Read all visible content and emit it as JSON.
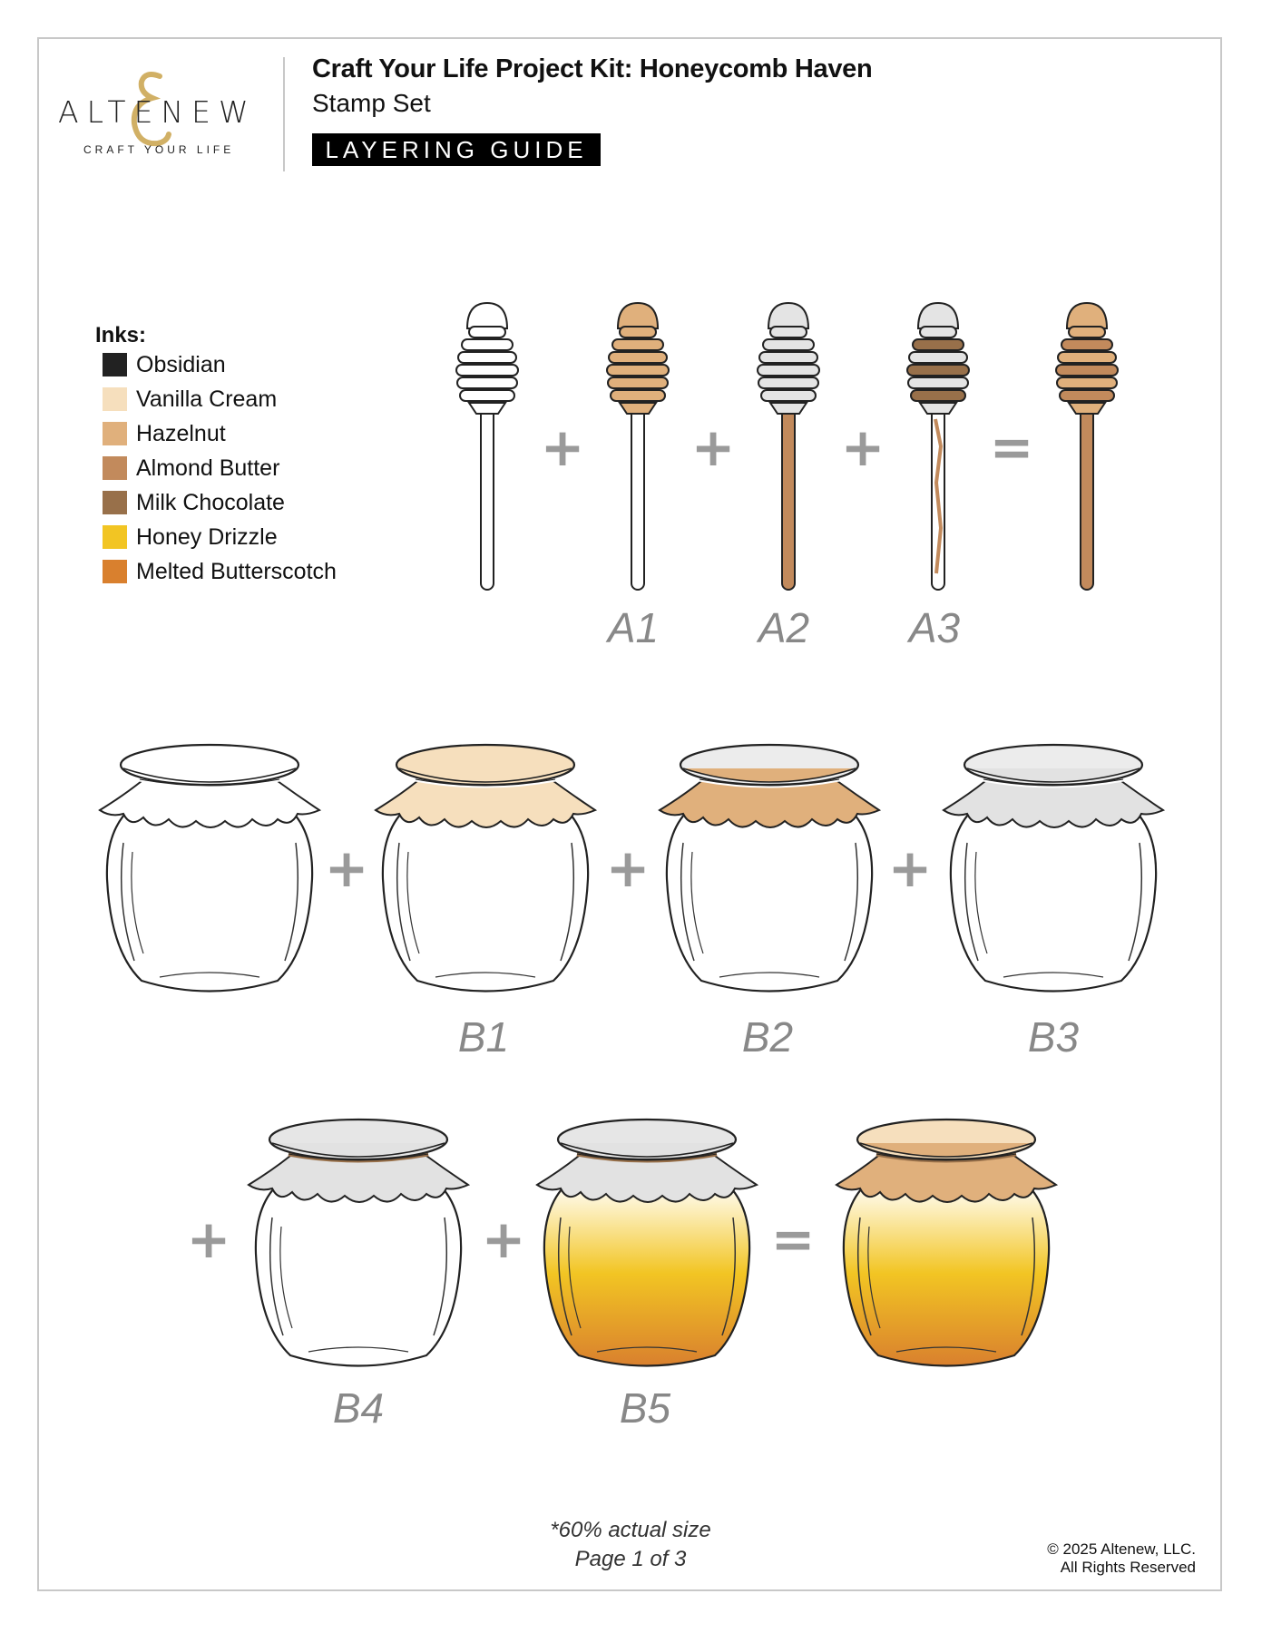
{
  "brand": {
    "logo_text": "ALTENEW",
    "logo_ampersand": "&",
    "tagline": "CRAFT YOUR LIFE"
  },
  "header": {
    "title": "Craft Your Life Project Kit: Honeycomb Haven",
    "subtitle": "Stamp Set",
    "badge": "LAYERING GUIDE"
  },
  "inks": {
    "heading": "Inks:",
    "items": [
      {
        "name": "Obsidian",
        "color": "#222222"
      },
      {
        "name": "Vanilla Cream",
        "color": "#f6dfbd"
      },
      {
        "name": "Hazelnut",
        "color": "#e0b07c"
      },
      {
        "name": "Almond Butter",
        "color": "#c28a5c"
      },
      {
        "name": "Milk Chocolate",
        "color": "#98704a"
      },
      {
        "name": "Honey Drizzle",
        "color": "#f2c523"
      },
      {
        "name": "Melted Butterscotch",
        "color": "#d9802e"
      }
    ]
  },
  "dipper_row": {
    "operators": [
      "+",
      "+",
      "+",
      "="
    ],
    "labels": [
      "A1",
      "A2",
      "A3"
    ],
    "steps": [
      "outline",
      "A1",
      "A2",
      "A3",
      "result"
    ]
  },
  "jar_row1": {
    "operators": [
      "+",
      "+",
      "+"
    ],
    "labels": [
      "B1",
      "B2",
      "B3"
    ],
    "steps": [
      "outline",
      "B1",
      "B2",
      "B3"
    ]
  },
  "jar_row2": {
    "operators": [
      "+",
      "+",
      "="
    ],
    "labels": [
      "B4",
      "B5"
    ],
    "steps": [
      "B4",
      "B5",
      "result"
    ]
  },
  "footer": {
    "scale_note": "*60% actual size",
    "page": "Page 1 of 3",
    "copyright": "© 2025 Altenew, LLC.",
    "rights": "All Rights Reserved"
  }
}
